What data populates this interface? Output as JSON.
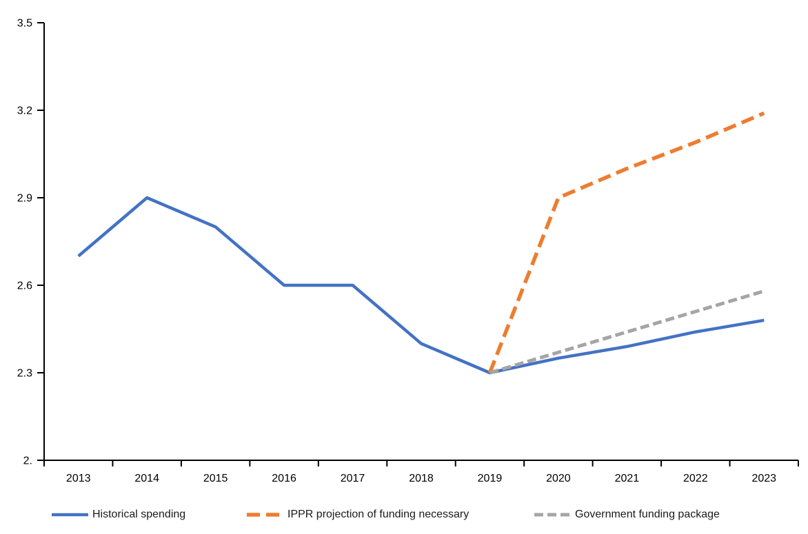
{
  "chart_data": {
    "type": "line",
    "title": "",
    "xlabel": "",
    "ylabel": "",
    "x": [
      2013,
      2014,
      2015,
      2016,
      2017,
      2018,
      2019,
      2020,
      2021,
      2022,
      2023
    ],
    "ylim": [
      2.0,
      3.5
    ],
    "grid": false,
    "legend_position": "bottom",
    "yticks": [
      {
        "value": 3.5,
        "label": "3.5"
      },
      {
        "value": 3.2,
        "label": "3.2"
      },
      {
        "value": 2.9,
        "label": "2.9"
      },
      {
        "value": 2.6,
        "label": "2.6"
      },
      {
        "value": 2.3,
        "label": "2.3"
      },
      {
        "value": 2.0,
        "label": "2."
      }
    ],
    "series": [
      {
        "name": "Historical spending",
        "color": "#4472C4",
        "line_style": "solid",
        "values": [
          2.7,
          2.9,
          2.8,
          2.6,
          2.6,
          2.4,
          2.3,
          2.35,
          2.39,
          2.44,
          2.48
        ]
      },
      {
        "name": "IPPR projection of funding necessary",
        "color": "#ED7D31",
        "line_style": "dashed",
        "values": [
          null,
          null,
          null,
          null,
          null,
          null,
          2.3,
          2.9,
          3.0,
          3.09,
          3.19
        ]
      },
      {
        "name": "Government funding package",
        "color": "#A5A5A5",
        "line_style": "dashed",
        "values": [
          null,
          null,
          null,
          null,
          null,
          null,
          2.3,
          2.37,
          2.44,
          2.51,
          2.58
        ]
      }
    ]
  }
}
